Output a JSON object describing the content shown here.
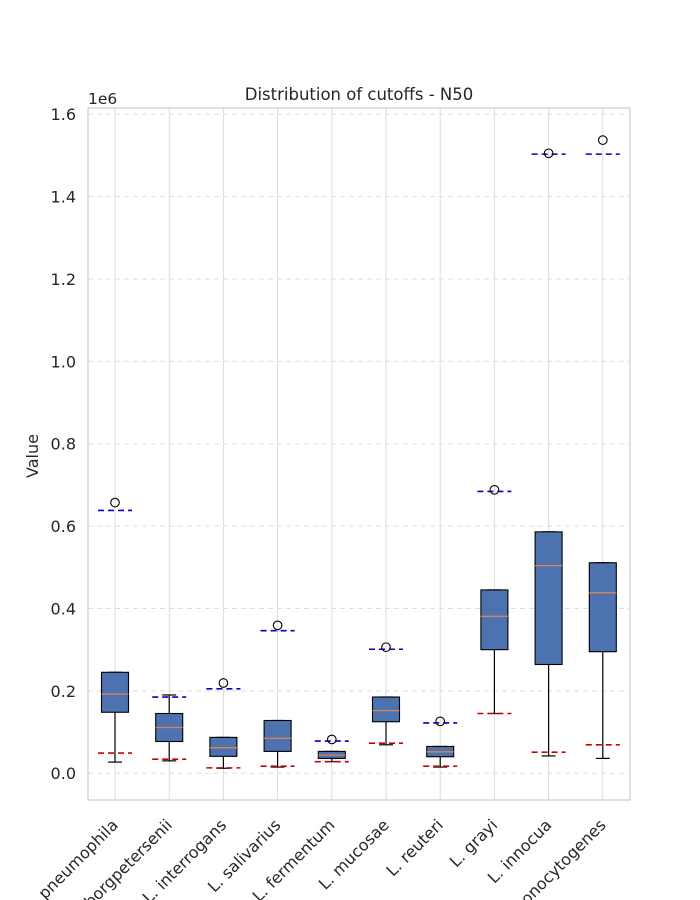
{
  "chart_data": {
    "type": "box",
    "title": "Distribution of cutoffs - N50",
    "xlabel": "",
    "ylabel": "Value",
    "y_offset_label": "1e6",
    "ylim": [
      -0.065,
      1.615
    ],
    "yticks": [
      0.0,
      0.2,
      0.4,
      0.6,
      0.8,
      1.0,
      1.2,
      1.4,
      1.6
    ],
    "ytick_labels": [
      "0.0",
      "0.2",
      "0.4",
      "0.6",
      "0.8",
      "1.0",
      "1.2",
      "1.4",
      "1.6"
    ],
    "grid": true,
    "colors": {
      "box_fill": "#4c72b0",
      "median": "#dd8452",
      "upper_marker": "#0000cc",
      "lower_marker": "#cc0000",
      "grid": "#dddddd"
    },
    "categories": [
      "L. pneumophila",
      "L. borgpetersenii",
      "L. interrogans",
      "L. salivarius",
      "L. fermentum",
      "L. mucosae",
      "L. reuteri",
      "L. grayi",
      "L. innocua",
      "L. monocytogenes"
    ],
    "boxes": [
      {
        "whislo": 0.027,
        "q1": 0.148,
        "med": 0.192,
        "q3": 0.245,
        "whishi": 0.245,
        "fliers": [
          0.657
        ],
        "upper_cutoff": 0.638,
        "lower_cutoff": 0.049
      },
      {
        "whislo": 0.03,
        "q1": 0.077,
        "med": 0.111,
        "q3": 0.145,
        "whishi": 0.19,
        "fliers": [],
        "upper_cutoff": 0.185,
        "lower_cutoff": 0.034
      },
      {
        "whislo": 0.012,
        "q1": 0.041,
        "med": 0.062,
        "q3": 0.087,
        "whishi": 0.087,
        "fliers": [
          0.219
        ],
        "upper_cutoff": 0.205,
        "lower_cutoff": 0.013
      },
      {
        "whislo": 0.015,
        "q1": 0.053,
        "med": 0.085,
        "q3": 0.128,
        "whishi": 0.128,
        "fliers": [
          0.359
        ],
        "upper_cutoff": 0.346,
        "lower_cutoff": 0.017
      },
      {
        "whislo": 0.028,
        "q1": 0.036,
        "med": 0.044,
        "q3": 0.053,
        "whishi": 0.053,
        "fliers": [
          0.082
        ],
        "upper_cutoff": 0.078,
        "lower_cutoff": 0.028
      },
      {
        "whislo": 0.069,
        "q1": 0.125,
        "med": 0.152,
        "q3": 0.185,
        "whishi": 0.185,
        "fliers": [
          0.306
        ],
        "upper_cutoff": 0.301,
        "lower_cutoff": 0.073
      },
      {
        "whislo": 0.015,
        "q1": 0.04,
        "med": 0.052,
        "q3": 0.065,
        "whishi": 0.065,
        "fliers": [
          0.126
        ],
        "upper_cutoff": 0.122,
        "lower_cutoff": 0.017
      },
      {
        "whislo": 0.145,
        "q1": 0.3,
        "med": 0.381,
        "q3": 0.445,
        "whishi": 0.445,
        "fliers": [
          0.688
        ],
        "upper_cutoff": 0.684,
        "lower_cutoff": 0.145
      },
      {
        "whislo": 0.042,
        "q1": 0.264,
        "med": 0.504,
        "q3": 0.586,
        "whishi": 0.586,
        "fliers": [
          1.505
        ],
        "upper_cutoff": 1.503,
        "lower_cutoff": 0.051
      },
      {
        "whislo": 0.036,
        "q1": 0.295,
        "med": 0.438,
        "q3": 0.511,
        "whishi": 0.511,
        "fliers": [
          1.537
        ],
        "upper_cutoff": 1.503,
        "lower_cutoff": 0.069
      }
    ]
  }
}
